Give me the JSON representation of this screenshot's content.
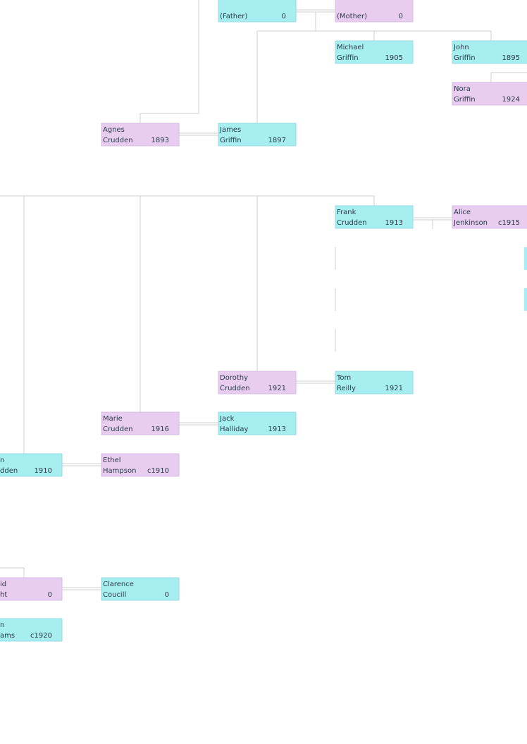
{
  "nodes": [
    {
      "line1": "",
      "line2": "(Father)",
      "year": "0",
      "sex": "m"
    },
    {
      "line1": "",
      "line2": "(Mother)",
      "year": "0",
      "sex": "f"
    },
    {
      "line1": "Michael",
      "line2": "Griffin",
      "year": "1905",
      "sex": "m"
    },
    {
      "line1": "John",
      "line2": "Griffin",
      "year": "1895",
      "sex": "m"
    },
    {
      "line1": "Nora",
      "line2": "Griffin",
      "year": "1924",
      "sex": "f"
    },
    {
      "line1": "Agnes",
      "line2": "Crudden",
      "year": "1893",
      "sex": "f"
    },
    {
      "line1": "James",
      "line2": "Griffin",
      "year": "1897",
      "sex": "m"
    },
    {
      "line1": "Frank",
      "line2": "Crudden",
      "year": "1913",
      "sex": "m"
    },
    {
      "line1": "Alice",
      "line2": "Jenkinson",
      "year": "c1915",
      "sex": "f"
    },
    {
      "line1": "Dorothy",
      "line2": "Crudden",
      "year": "1921",
      "sex": "f"
    },
    {
      "line1": "Tom",
      "line2": "Reilly",
      "year": "1921",
      "sex": "m"
    },
    {
      "line1": "Marie",
      "line2": "Crudden",
      "year": "1916",
      "sex": "f"
    },
    {
      "line1": "Jack",
      "line2": "Halliday",
      "year": "1913",
      "sex": "m"
    },
    {
      "line1": "n",
      "line2": "dden",
      "year": "1910",
      "sex": "m"
    },
    {
      "line1": "Ethel",
      "line2": "Hampson",
      "year": "c1910",
      "sex": "f"
    },
    {
      "line1": "id",
      "line2": "ht",
      "year": "0",
      "sex": "f"
    },
    {
      "line1": "Clarence",
      "line2": "Coucill",
      "year": "0",
      "sex": "m"
    },
    {
      "line1": "n",
      "line2": "ams",
      "year": "c1920",
      "sex": "m"
    }
  ]
}
